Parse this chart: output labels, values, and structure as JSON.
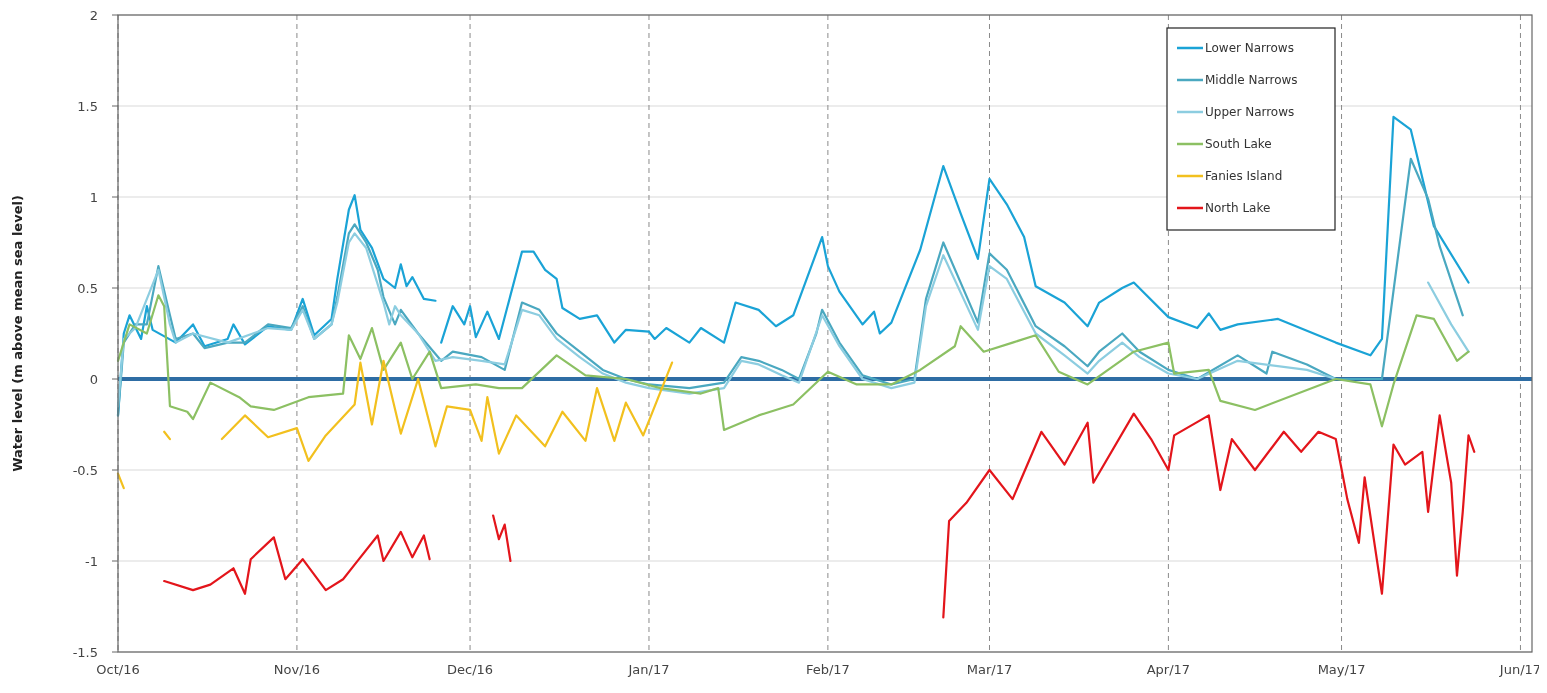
{
  "chart_data": {
    "type": "line",
    "ylabel": "Water level (m above mean sea level)",
    "xlim": [
      "2016-10-01",
      "2017-06-03"
    ],
    "ylim": [
      -1.5,
      2
    ],
    "xticks": [
      {
        "value": "2016-10-01",
        "label": "Oct/16"
      },
      {
        "value": "2016-11-01",
        "label": "Nov/16"
      },
      {
        "value": "2016-12-01",
        "label": "Dec/16"
      },
      {
        "value": "2017-01-01",
        "label": "Jan/17"
      },
      {
        "value": "2017-02-01",
        "label": "Feb/17"
      },
      {
        "value": "2017-03-01",
        "label": "Mar/17"
      },
      {
        "value": "2017-04-01",
        "label": "Apr/17"
      },
      {
        "value": "2017-05-01",
        "label": "May/17"
      },
      {
        "value": "2017-06-01",
        "label": "Jun/17"
      }
    ],
    "yticks": [
      -1.5,
      -1,
      -0.5,
      0,
      0.5,
      1,
      1.5,
      2
    ],
    "grid": true,
    "legend": "top right",
    "marker": "none",
    "line_style": "solid",
    "ref_lines": [
      {
        "axis": "y",
        "value": 0,
        "color": "#2e6da4"
      }
    ],
    "series": [
      {
        "name": "Lower Narrows",
        "color": "#1aa3d6",
        "x": [
          "2016-10-01",
          "2016-10-02",
          "2016-10-03",
          "2016-10-05",
          "2016-10-06",
          "2016-10-07",
          "2016-10-11",
          "2016-10-14",
          "2016-10-16",
          "2016-10-20",
          "2016-10-21",
          "2016-10-23",
          "2016-10-27",
          "2016-10-31",
          "2016-11-02",
          "2016-11-04",
          "2016-11-07",
          "2016-11-08",
          "2016-11-10",
          "2016-11-11",
          "2016-11-12",
          "2016-11-14",
          "2016-11-16",
          "2016-11-18",
          "2016-11-19",
          "2016-11-20",
          "2016-11-21",
          "2016-11-23",
          "2016-11-25",
          "2016-11-25T12:00",
          "2016-11-26",
          "2016-11-28",
          "2016-11-30",
          "2016-12-01",
          "2016-12-02",
          "2016-12-04",
          "2016-12-06",
          "2016-12-10",
          "2016-12-12",
          "2016-12-14",
          "2016-12-16",
          "2016-12-17",
          "2016-12-20",
          "2016-12-23",
          "2016-12-26",
          "2016-12-28",
          "2017-01-01",
          "2017-01-02",
          "2017-01-04",
          "2017-01-08",
          "2017-01-10",
          "2017-01-14",
          "2017-01-16",
          "2017-01-20",
          "2017-01-23",
          "2017-01-26",
          "2017-01-31",
          "2017-02-01",
          "2017-02-03",
          "2017-02-07",
          "2017-02-09",
          "2017-02-10",
          "2017-02-12",
          "2017-02-17",
          "2017-02-21",
          "2017-02-24",
          "2017-02-27",
          "2017-03-01",
          "2017-03-04",
          "2017-03-07",
          "2017-03-09",
          "2017-03-14",
          "2017-03-18",
          "2017-03-20",
          "2017-03-24",
          "2017-03-26",
          "2017-04-01",
          "2017-04-06",
          "2017-04-08",
          "2017-04-10",
          "2017-04-13",
          "2017-04-20",
          "2017-04-30",
          "2017-05-06",
          "2017-05-08",
          "2017-05-10",
          "2017-05-13",
          "2017-05-17",
          "2017-05-23"
        ],
        "values": [
          -0.2,
          0.25,
          0.35,
          0.22,
          0.4,
          0.27,
          0.2,
          0.3,
          0.18,
          0.22,
          0.3,
          0.19,
          0.29,
          0.27,
          0.44,
          0.24,
          0.33,
          0.55,
          0.93,
          1.01,
          0.82,
          0.72,
          0.55,
          0.5,
          0.63,
          0.51,
          0.56,
          0.44,
          0.43,
          null,
          0.2,
          0.4,
          0.3,
          0.4,
          0.23,
          0.37,
          0.22,
          0.7,
          0.7,
          0.6,
          0.55,
          0.39,
          0.33,
          0.35,
          0.2,
          0.27,
          0.26,
          0.22,
          0.28,
          0.2,
          0.28,
          0.2,
          0.42,
          0.38,
          0.29,
          0.35,
          0.78,
          0.62,
          0.48,
          0.3,
          0.37,
          0.25,
          0.31,
          0.71,
          1.17,
          0.91,
          0.66,
          1.1,
          0.96,
          0.78,
          0.51,
          0.42,
          0.29,
          0.42,
          0.5,
          0.53,
          0.34,
          0.28,
          0.36,
          0.27,
          0.3,
          0.33,
          0.2,
          0.13,
          0.22,
          1.44,
          1.37,
          0.84,
          0.53
        ]
      },
      {
        "name": "Middle Narrows",
        "color": "#4aa8c0",
        "x": [
          "2016-10-01",
          "2016-10-02",
          "2016-10-04",
          "2016-10-06",
          "2016-10-08",
          "2016-10-10",
          "2016-10-11",
          "2016-10-14",
          "2016-10-16",
          "2016-10-20",
          "2016-10-23",
          "2016-10-27",
          "2016-10-31",
          "2016-11-02",
          "2016-11-04",
          "2016-11-07",
          "2016-11-08",
          "2016-11-10",
          "2016-11-11",
          "2016-11-13",
          "2016-11-15",
          "2016-11-16",
          "2016-11-18",
          "2016-11-19",
          "2016-11-22",
          "2016-11-26",
          "2016-11-28",
          "2016-12-03",
          "2016-12-07",
          "2016-12-10",
          "2016-12-13",
          "2016-12-16",
          "2016-12-20",
          "2016-12-24",
          "2016-12-28",
          "2017-01-01",
          "2017-01-08",
          "2017-01-14",
          "2017-01-17",
          "2017-01-20",
          "2017-01-24",
          "2017-01-27",
          "2017-01-30",
          "2017-01-31",
          "2017-02-03",
          "2017-02-07",
          "2017-02-12",
          "2017-02-16",
          "2017-02-18",
          "2017-02-21",
          "2017-02-27",
          "2017-03-01",
          "2017-03-04",
          "2017-03-09",
          "2017-03-14",
          "2017-03-18",
          "2017-03-20",
          "2017-03-24",
          "2017-03-27",
          "2017-04-01",
          "2017-04-06",
          "2017-04-13",
          "2017-04-18",
          "2017-04-19",
          "2017-04-25",
          "2017-04-30",
          "2017-05-08",
          "2017-05-13",
          "2017-05-16",
          "2017-05-18",
          "2017-05-22"
        ],
        "values": [
          -0.2,
          0.2,
          0.3,
          0.3,
          0.62,
          0.35,
          0.22,
          0.25,
          0.17,
          0.2,
          0.2,
          0.3,
          0.28,
          0.4,
          0.22,
          0.3,
          0.45,
          0.8,
          0.85,
          0.75,
          0.6,
          0.45,
          0.3,
          0.38,
          0.25,
          0.1,
          0.15,
          0.12,
          0.05,
          0.42,
          0.38,
          0.25,
          0.15,
          0.05,
          0,
          -0.03,
          -0.05,
          -0.02,
          0.12,
          0.1,
          0.05,
          0,
          0.25,
          0.38,
          0.2,
          0.02,
          -0.03,
          0,
          0.44,
          0.75,
          0.31,
          0.69,
          0.6,
          0.29,
          0.18,
          0.07,
          0.15,
          0.25,
          0.15,
          0.05,
          0,
          0.13,
          0.03,
          0.15,
          0.08,
          0,
          0,
          1.21,
          0.99,
          0.73,
          0.35
        ]
      },
      {
        "name": "Upper Narrows",
        "color": "#8ccde0",
        "x": [
          "2016-10-01",
          "2016-10-02",
          "2016-10-04",
          "2016-10-08",
          "2016-10-10",
          "2016-10-11",
          "2016-10-14",
          "2016-10-20",
          "2016-10-27",
          "2016-10-31",
          "2016-11-02",
          "2016-11-04",
          "2016-11-07",
          "2016-11-08",
          "2016-11-10",
          "2016-11-11",
          "2016-11-13",
          "2016-11-16",
          "2016-11-17",
          "2016-11-18",
          "2016-11-19",
          "2016-11-22",
          "2016-11-25",
          "2016-11-28",
          "2016-12-03",
          "2016-12-07",
          "2016-12-10",
          "2016-12-13",
          "2016-12-16",
          "2016-12-20",
          "2016-12-24",
          "2016-12-28",
          "2017-01-01",
          "2017-01-08",
          "2017-01-14",
          "2017-01-17",
          "2017-01-20",
          "2017-01-24",
          "2017-01-27",
          "2017-01-31",
          "2017-02-03",
          "2017-02-07",
          "2017-02-12",
          "2017-02-16",
          "2017-02-18",
          "2017-02-21",
          "2017-02-27",
          "2017-03-01",
          "2017-03-04",
          "2017-03-09",
          "2017-03-14",
          "2017-03-18",
          "2017-03-20",
          "2017-03-24",
          "2017-03-27",
          "2017-04-01",
          "2017-04-06",
          "2017-04-13",
          "2017-04-25",
          "2017-04-30",
          "2017-05-08",
          "2017-05-16",
          "2017-05-20",
          "2017-05-23"
        ],
        "values": [
          -0.15,
          0.22,
          0.28,
          0.6,
          0.3,
          0.2,
          0.25,
          0.2,
          0.28,
          0.27,
          0.38,
          0.22,
          0.3,
          0.42,
          0.75,
          0.8,
          0.72,
          0.42,
          0.3,
          0.4,
          0.35,
          0.25,
          0.1,
          0.12,
          0.1,
          0.08,
          0.38,
          0.35,
          0.22,
          0.12,
          0.03,
          -0.02,
          -0.05,
          -0.08,
          -0.05,
          0.1,
          0.08,
          0.02,
          -0.02,
          0.35,
          0.18,
          0,
          -0.05,
          -0.02,
          0.4,
          0.68,
          0.27,
          0.62,
          0.55,
          0.25,
          0.13,
          0.03,
          0.1,
          0.2,
          0.12,
          0.03,
          0,
          0.1,
          0.05,
          0,
          null,
          0.53,
          0.3,
          0.15
        ]
      },
      {
        "name": "South Lake",
        "color": "#8cc063",
        "x": [
          "2016-10-01",
          "2016-10-03",
          "2016-10-06",
          "2016-10-08",
          "2016-10-09",
          "2016-10-10",
          "2016-10-13",
          "2016-10-14",
          "2016-10-17",
          "2016-10-22",
          "2016-10-24",
          "2016-10-28",
          "2016-11-03",
          "2016-11-09",
          "2016-11-10",
          "2016-11-12",
          "2016-11-14",
          "2016-11-16",
          "2016-11-19",
          "2016-11-21",
          "2016-11-24",
          "2016-11-26",
          "2016-12-02",
          "2016-12-06",
          "2016-12-10",
          "2016-12-16",
          "2016-12-21",
          "2016-12-28",
          "2017-01-03",
          "2017-01-10",
          "2017-01-13",
          "2017-01-14",
          "2017-01-20",
          "2017-01-26",
          "2017-02-01",
          "2017-02-06",
          "2017-02-12",
          "2017-02-17",
          "2017-02-23",
          "2017-02-24",
          "2017-02-28",
          "2017-03-05",
          "2017-03-09",
          "2017-03-13",
          "2017-03-18",
          "2017-03-26",
          "2017-04-01",
          "2017-04-02",
          "2017-04-08",
          "2017-04-10",
          "2017-04-16",
          "2017-04-30",
          "2017-05-06",
          "2017-05-08",
          "2017-05-10",
          "2017-05-14",
          "2017-05-17",
          "2017-05-21",
          "2017-05-23"
        ],
        "values": [
          0.1,
          0.3,
          0.25,
          0.46,
          0.4,
          -0.15,
          -0.18,
          -0.22,
          -0.02,
          -0.1,
          -0.15,
          -0.17,
          -0.1,
          -0.08,
          0.24,
          0.11,
          0.28,
          0.05,
          0.2,
          0,
          0.15,
          -0.05,
          -0.03,
          -0.05,
          -0.05,
          0.13,
          0.02,
          0,
          -0.05,
          -0.08,
          -0.05,
          -0.28,
          -0.2,
          -0.14,
          0.04,
          -0.03,
          -0.03,
          0.05,
          0.18,
          0.29,
          0.15,
          0.2,
          0.24,
          0.04,
          -0.03,
          0.15,
          0.2,
          0.03,
          0.05,
          -0.12,
          -0.17,
          0,
          -0.03,
          -0.26,
          -0.03,
          0.35,
          0.33,
          0.1,
          0.15
        ]
      },
      {
        "name": "Fanies Island",
        "color": "#f2c01e",
        "x": [
          "2016-10-01",
          "2016-10-02",
          "2016-10-05",
          "2016-10-09",
          "2016-10-10",
          "2016-10-15",
          "2016-10-19",
          "2016-10-23",
          "2016-10-27",
          "2016-11-01",
          "2016-11-03",
          "2016-11-06",
          "2016-11-11",
          "2016-11-12",
          "2016-11-14",
          "2016-11-16",
          "2016-11-19",
          "2016-11-22",
          "2016-11-25",
          "2016-11-27",
          "2016-12-01",
          "2016-12-03",
          "2016-12-04",
          "2016-12-06",
          "2016-12-09",
          "2016-12-14",
          "2016-12-17",
          "2016-12-21",
          "2016-12-23",
          "2016-12-26",
          "2016-12-28",
          "2016-12-31",
          "2017-01-05"
        ],
        "values": [
          -0.52,
          -0.6,
          null,
          -0.29,
          -0.33,
          null,
          -0.33,
          -0.2,
          -0.32,
          -0.27,
          -0.45,
          -0.31,
          -0.14,
          0.09,
          -0.25,
          0.1,
          -0.3,
          0,
          -0.37,
          -0.15,
          -0.17,
          -0.34,
          -0.1,
          -0.41,
          -0.2,
          -0.37,
          -0.18,
          -0.34,
          -0.05,
          -0.34,
          -0.13,
          -0.31,
          0.09
        ]
      },
      {
        "name": "North Lake",
        "color": "#e3151b",
        "x": [
          "2016-10-09",
          "2016-10-14",
          "2016-10-17",
          "2016-10-21",
          "2016-10-23",
          "2016-10-24",
          "2016-10-28",
          "2016-10-30",
          "2016-11-02",
          "2016-11-06",
          "2016-11-09",
          "2016-11-11",
          "2016-11-15",
          "2016-11-16",
          "2016-11-19",
          "2016-11-21",
          "2016-11-23",
          "2016-11-24",
          "2016-11-30",
          "2016-12-05",
          "2016-12-06",
          "2016-12-07",
          "2016-12-08",
          "2017-01-15",
          "2017-02-21",
          "2017-02-22",
          "2017-02-25",
          "2017-03-01",
          "2017-03-05",
          "2017-03-10",
          "2017-03-14",
          "2017-03-18",
          "2017-03-19",
          "2017-03-26",
          "2017-03-29",
          "2017-04-01",
          "2017-04-02",
          "2017-04-08",
          "2017-04-10",
          "2017-04-12",
          "2017-04-16",
          "2017-04-21",
          "2017-04-24",
          "2017-04-27",
          "2017-04-30",
          "2017-05-02",
          "2017-05-04",
          "2017-05-05",
          "2017-05-08",
          "2017-05-10",
          "2017-05-12",
          "2017-05-15",
          "2017-05-16",
          "2017-05-18",
          "2017-05-20",
          "2017-05-21",
          "2017-05-22",
          "2017-05-23",
          "2017-05-24"
        ],
        "values": [
          -1.11,
          -1.16,
          -1.13,
          -1.04,
          -1.18,
          -0.99,
          -0.87,
          -1.1,
          -0.99,
          -1.16,
          -1.1,
          -1.02,
          -0.86,
          -1,
          -0.84,
          -0.98,
          -0.86,
          -0.99,
          null,
          -0.75,
          -0.88,
          -0.8,
          -1,
          null,
          -1.31,
          -0.78,
          -0.68,
          -0.5,
          -0.66,
          -0.29,
          -0.47,
          -0.24,
          -0.57,
          -0.19,
          -0.33,
          -0.5,
          -0.31,
          -0.2,
          -0.61,
          -0.33,
          -0.5,
          -0.29,
          -0.4,
          -0.29,
          -0.33,
          -0.66,
          -0.9,
          -0.54,
          -1.18,
          -0.36,
          -0.47,
          -0.4,
          -0.73,
          -0.2,
          -0.57,
          -1.08,
          -0.73,
          -0.31,
          -0.4
        ]
      }
    ]
  }
}
